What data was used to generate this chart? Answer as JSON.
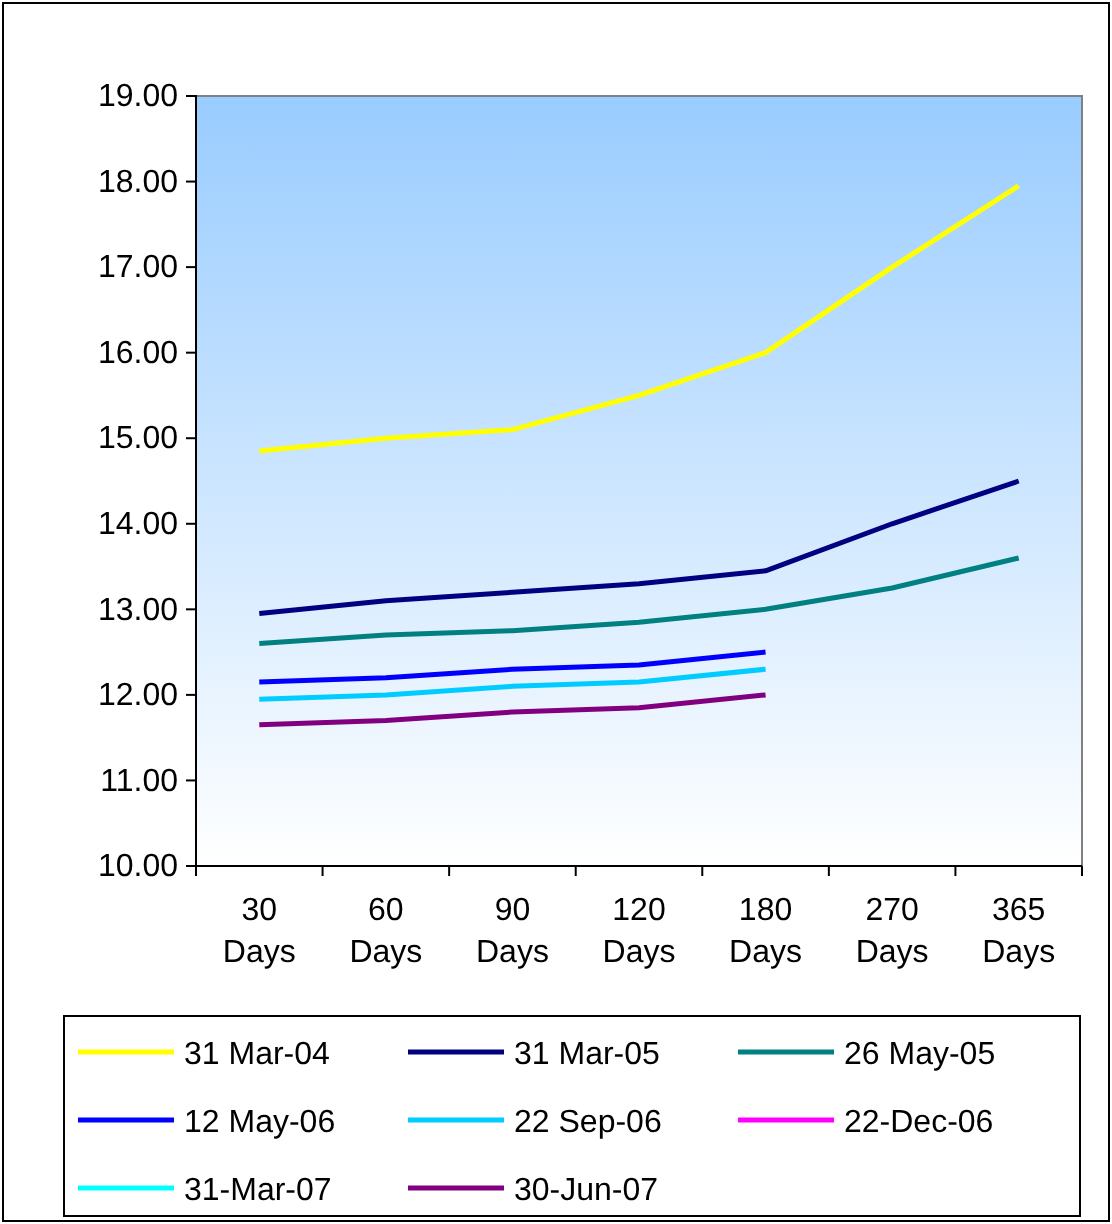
{
  "chart_data": {
    "type": "line",
    "categories": [
      "30 Days",
      "60 Days",
      "90 Days",
      "120 Days",
      "180 Days",
      "270 Days",
      "365 Days"
    ],
    "ylim": [
      10,
      19
    ],
    "yticks": [
      {
        "value": 10,
        "label": "10.00"
      },
      {
        "value": 11,
        "label": "11.00"
      },
      {
        "value": 12,
        "label": "12.00"
      },
      {
        "value": 13,
        "label": "13.00"
      },
      {
        "value": 14,
        "label": "14.00"
      },
      {
        "value": 15,
        "label": "15.00"
      },
      {
        "value": 16,
        "label": "16.00"
      },
      {
        "value": 17,
        "label": "17.00"
      },
      {
        "value": 18,
        "label": "18.00"
      },
      {
        "value": 19,
        "label": "19.00"
      }
    ],
    "grid": false,
    "legend": "bottom",
    "marker": "none",
    "line_style": "solid",
    "series": [
      {
        "name": "31 Mar-04",
        "color": "#ffff00",
        "values": [
          14.85,
          15.0,
          15.1,
          15.5,
          16.0,
          17.0,
          17.95
        ]
      },
      {
        "name": "31 Mar-05",
        "color": "#000080",
        "values": [
          12.95,
          13.1,
          13.2,
          13.3,
          13.45,
          14.0,
          14.5
        ]
      },
      {
        "name": "26 May-05",
        "color": "#008080",
        "values": [
          12.6,
          12.7,
          12.75,
          12.85,
          13.0,
          13.25,
          13.6
        ]
      },
      {
        "name": "12 May-06",
        "color": "#0000ff",
        "values": [
          12.15,
          12.2,
          12.3,
          12.35,
          12.5,
          null,
          null
        ]
      },
      {
        "name": "22 Sep-06",
        "color": "#00ccff",
        "values": [
          11.95,
          12.0,
          12.1,
          12.15,
          12.3,
          null,
          null
        ]
      },
      {
        "name": "22-Dec-06",
        "color": "#ff00ff",
        "values": [
          null,
          null,
          null,
          null,
          null,
          null,
          null
        ]
      },
      {
        "name": "31-Mar-07",
        "color": "#00ffff",
        "values": [
          null,
          null,
          null,
          null,
          null,
          null,
          null
        ]
      },
      {
        "name": "30-Jun-07",
        "color": "#800080",
        "values": [
          11.65,
          11.7,
          11.8,
          11.85,
          12.0,
          null,
          null
        ]
      }
    ]
  }
}
